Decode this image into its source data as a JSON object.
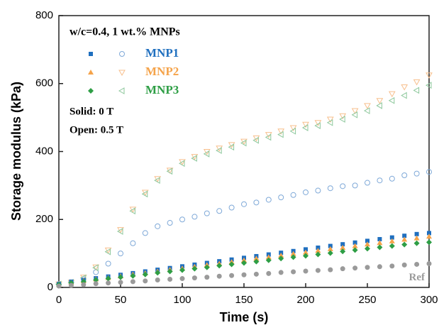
{
  "chart_data": {
    "type": "scatter",
    "xlabel": "Time (s)",
    "ylabel": "Storage modulus (kPa)",
    "annotations": [
      "w/c=0.4, 1 wt.% MNPs",
      "Solid: 0 T",
      "Open: 0.5 T"
    ],
    "xlim": [
      0,
      300
    ],
    "xticks": [
      0,
      50,
      100,
      150,
      200,
      250,
      300
    ],
    "ylim": [
      0,
      800
    ],
    "yticks": [
      0,
      200,
      400,
      600,
      800
    ],
    "x": [
      0,
      10,
      20,
      30,
      40,
      50,
      60,
      70,
      80,
      90,
      100,
      110,
      120,
      130,
      140,
      150,
      160,
      170,
      180,
      190,
      200,
      210,
      220,
      230,
      240,
      250,
      260,
      270,
      280,
      290,
      300
    ],
    "series": [
      {
        "name": "MNP1",
        "color": "#1f6fbf",
        "marker": "square",
        "values": [
          10,
          17,
          22,
          27,
          32,
          37,
          42,
          47,
          52,
          57,
          62,
          67,
          72,
          77,
          82,
          87,
          92,
          97,
          102,
          107,
          112,
          117,
          122,
          127,
          132,
          137,
          142,
          147,
          152,
          157,
          160
        ],
        "open_color": "#7fa9d8",
        "open_marker": "circle",
        "open_values": [
          10,
          15,
          25,
          45,
          70,
          100,
          130,
          160,
          180,
          190,
          200,
          208,
          218,
          225,
          235,
          245,
          250,
          258,
          265,
          272,
          280,
          285,
          292,
          298,
          300,
          308,
          315,
          320,
          330,
          335,
          340
        ]
      },
      {
        "name": "MNP2",
        "color": "#f5a34a",
        "marker": "triangle-up",
        "values": [
          8,
          14,
          19,
          24,
          28,
          33,
          38,
          42,
          47,
          52,
          56,
          61,
          66,
          70,
          75,
          80,
          85,
          89,
          94,
          99,
          103,
          108,
          113,
          117,
          122,
          127,
          131,
          136,
          141,
          145,
          150
        ],
        "open_color": "#f7bf8c",
        "open_marker": "triangle-down",
        "open_values": [
          10,
          15,
          30,
          60,
          110,
          170,
          230,
          280,
          320,
          345,
          370,
          385,
          400,
          410,
          420,
          430,
          440,
          450,
          460,
          470,
          480,
          485,
          495,
          505,
          520,
          535,
          550,
          570,
          590,
          605,
          625
        ]
      },
      {
        "name": "MNP3",
        "color": "#2e9e45",
        "marker": "diamond",
        "values": [
          8,
          13,
          17,
          22,
          26,
          30,
          34,
          38,
          43,
          47,
          51,
          55,
          59,
          64,
          68,
          72,
          76,
          80,
          85,
          89,
          93,
          97,
          101,
          106,
          110,
          114,
          118,
          122,
          126,
          130,
          133
        ],
        "open_color": "#8cc79b",
        "open_marker": "triangle-left",
        "open_values": [
          10,
          15,
          28,
          58,
          105,
          165,
          225,
          275,
          315,
          342,
          365,
          380,
          393,
          403,
          413,
          425,
          433,
          442,
          450,
          460,
          470,
          476,
          485,
          495,
          508,
          520,
          535,
          550,
          565,
          580,
          595
        ]
      },
      {
        "name": "Ref",
        "color": "#9a9a9a",
        "marker": "circle",
        "values": [
          4,
          6,
          8,
          11,
          13,
          15,
          17,
          19,
          22,
          24,
          26,
          28,
          30,
          33,
          35,
          37,
          39,
          41,
          44,
          46,
          48,
          50,
          52,
          55,
          57,
          59,
          61,
          63,
          66,
          68,
          70
        ]
      }
    ]
  }
}
